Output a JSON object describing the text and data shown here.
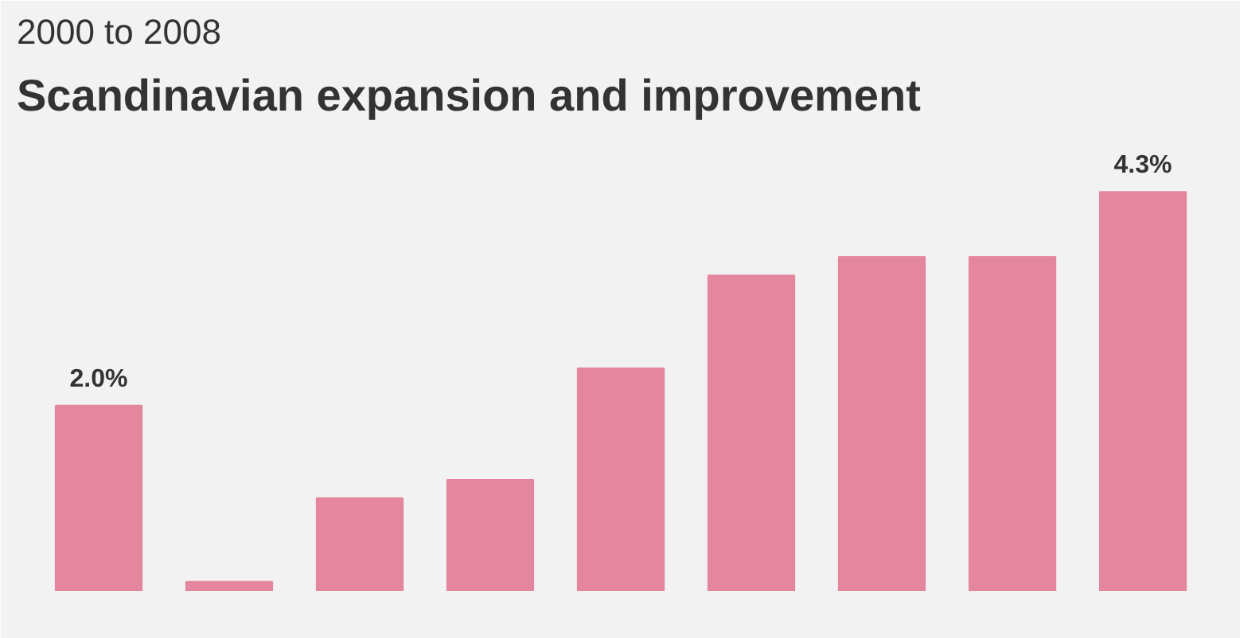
{
  "chart_data": {
    "type": "bar",
    "subtitle": "2000 to 2008",
    "title": "Scandinavian expansion and improvement",
    "categories": [
      null,
      null,
      null,
      null,
      null,
      null,
      null,
      null,
      null
    ],
    "values": [
      2.0,
      0.1,
      1.0,
      1.2,
      2.4,
      3.4,
      3.6,
      3.6,
      4.3
    ],
    "value_labels": [
      "2.0%",
      null,
      null,
      null,
      null,
      null,
      null,
      null,
      "4.3%"
    ],
    "color": "#e3869e",
    "grid": false
  }
}
